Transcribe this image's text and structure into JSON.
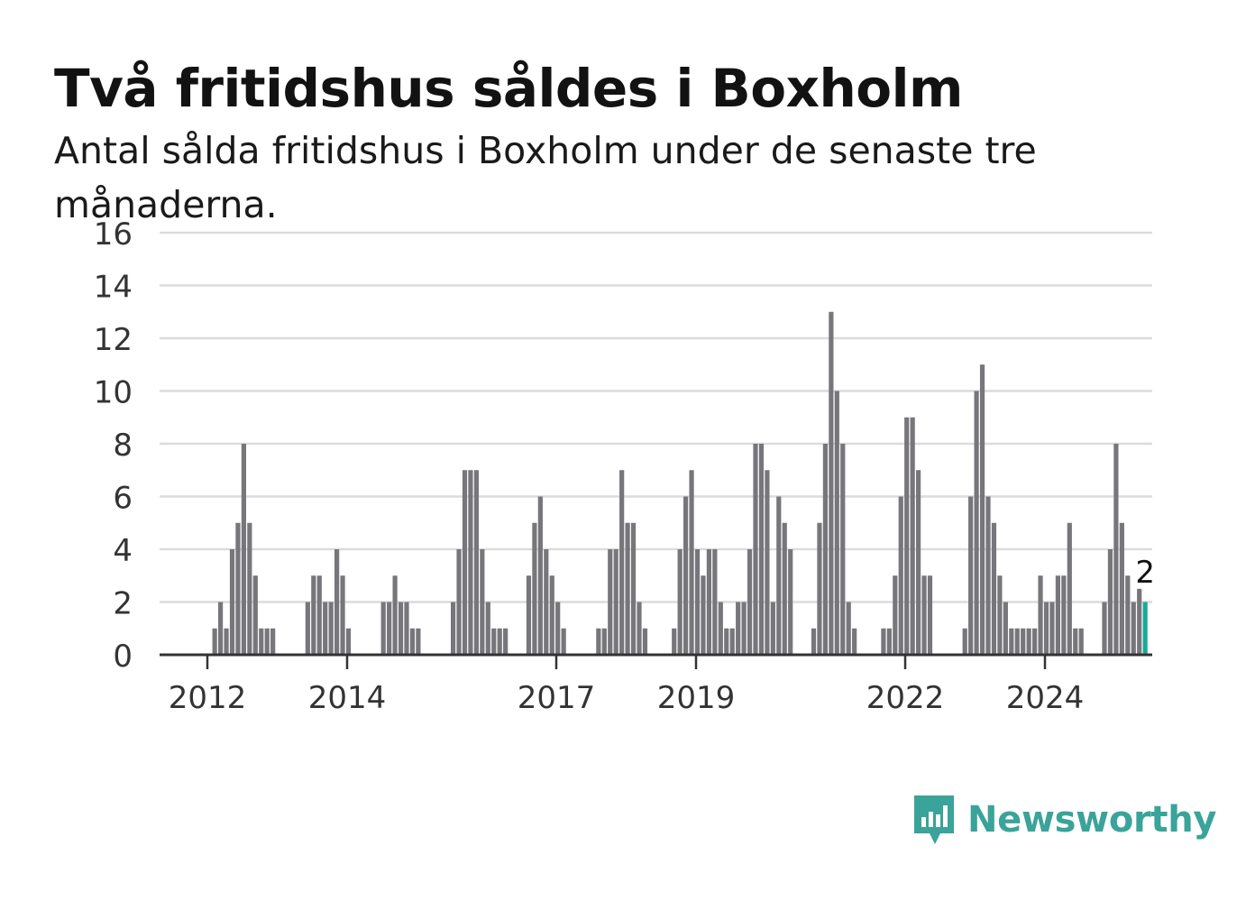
{
  "title": "Två fritidshus såldes i Boxholm",
  "subtitle": "Antal sålda fritidshus i Boxholm under de senaste tre månaderna.",
  "brand": {
    "name": "Newsworthy",
    "icon": "newsworthy-logo-icon",
    "color": "#3aa39a"
  },
  "chart_data": {
    "type": "bar",
    "title": "Två fritidshus såldes i Boxholm",
    "subtitle": "Antal sålda fritidshus i Boxholm under de senaste tre månaderna.",
    "xlabel": "",
    "ylabel": "",
    "ylim": [
      0,
      16
    ],
    "yticks": [
      0,
      2,
      4,
      6,
      8,
      10,
      12,
      14,
      16
    ],
    "xticks": [
      "2012",
      "2014",
      "2017",
      "2019",
      "2022",
      "2024"
    ],
    "grid": true,
    "legend": "none",
    "bar_color": "#77767b",
    "highlight_color": "#1aa99b",
    "highlight_label": "2",
    "values": [
      0,
      0,
      0,
      0,
      0,
      0,
      0,
      0,
      0,
      1,
      2,
      1,
      4,
      5,
      8,
      5,
      3,
      1,
      1,
      1,
      0,
      0,
      0,
      0,
      0,
      2,
      3,
      3,
      2,
      2,
      4,
      3,
      1,
      0,
      0,
      0,
      0,
      0,
      2,
      2,
      3,
      2,
      2,
      1,
      1,
      0,
      0,
      0,
      0,
      0,
      2,
      4,
      7,
      7,
      7,
      4,
      2,
      1,
      1,
      1,
      0,
      0,
      0,
      3,
      5,
      6,
      4,
      3,
      2,
      1,
      0,
      0,
      0,
      0,
      0,
      1,
      1,
      4,
      4,
      7,
      5,
      5,
      2,
      1,
      0,
      0,
      0,
      0,
      1,
      4,
      6,
      7,
      4,
      3,
      4,
      4,
      2,
      1,
      1,
      2,
      2,
      4,
      8,
      8,
      7,
      2,
      6,
      5,
      4,
      0,
      0,
      0,
      1,
      5,
      8,
      13,
      10,
      8,
      2,
      1,
      0,
      0,
      0,
      0,
      1,
      1,
      3,
      6,
      9,
      9,
      7,
      3,
      3,
      0,
      0,
      0,
      0,
      0,
      1,
      6,
      10,
      11,
      6,
      5,
      3,
      2,
      1,
      1,
      1,
      1,
      1,
      3,
      2,
      2,
      3,
      3,
      5,
      1,
      1,
      0,
      0,
      0,
      2,
      4,
      8,
      5,
      3,
      2,
      2.5,
      2
    ]
  }
}
